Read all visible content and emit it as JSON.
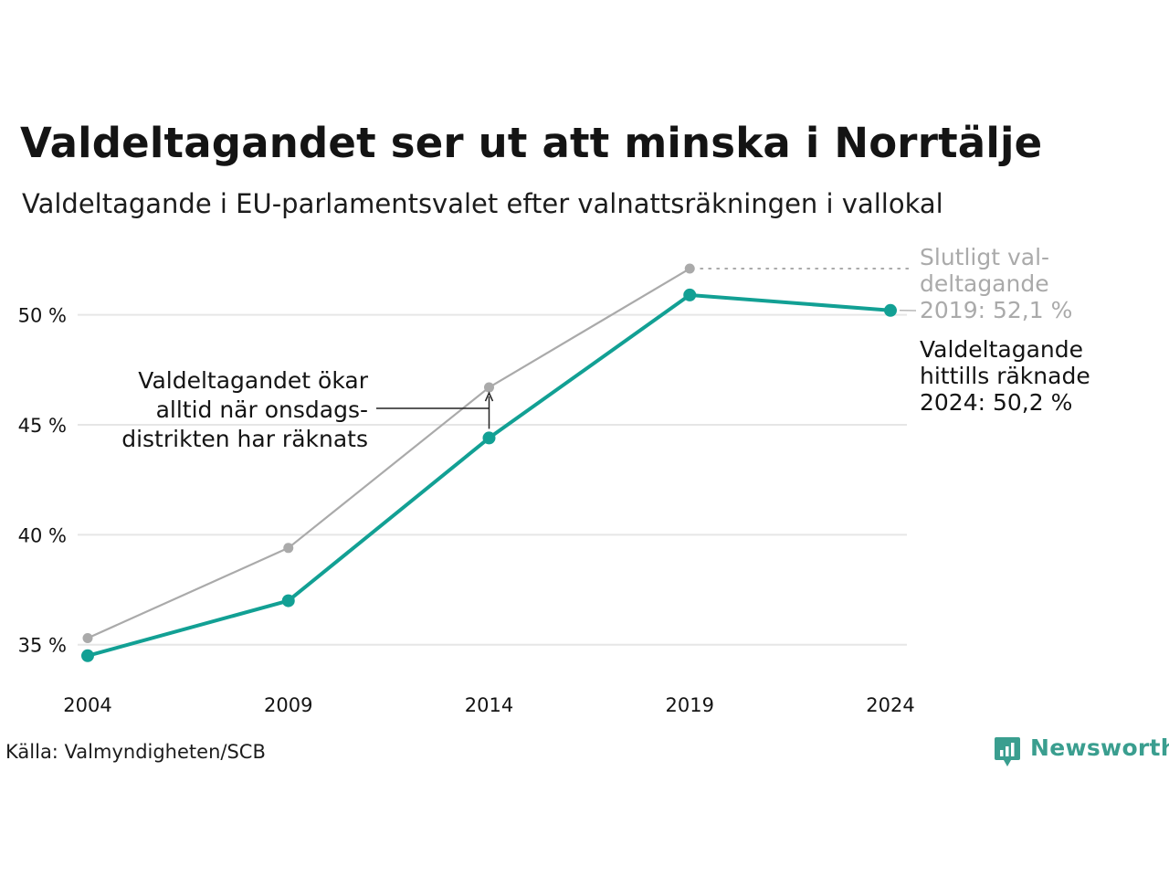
{
  "title": "Valdeltagandet ser ut att minska i Norrtälje",
  "subtitle": "Valdeltagande i EU-parlamentsvalet efter valnattsräkningen i vallokal",
  "source": "Källa: Valmyndigheten/SCB",
  "logo": {
    "text": "Newsworthy",
    "icon": "newsworthy-logo-icon"
  },
  "colors": {
    "counted": "#12a094",
    "final": "#aaaaaa",
    "grid": "#e6e6e6",
    "text": "#141414",
    "annotation": "#222222"
  },
  "chart_data": {
    "type": "line",
    "x": [
      "2004",
      "2009",
      "2014",
      "2019",
      "2024"
    ],
    "yticks": [
      "35 %",
      "40 %",
      "45 %",
      "50 %"
    ],
    "ytick_values": [
      35,
      40,
      45,
      50
    ],
    "ylim": [
      34.2,
      52.6
    ],
    "grid": "horizontal",
    "series": [
      {
        "key": "final",
        "values": [
          35.3,
          39.4,
          46.7,
          52.1,
          null
        ]
      },
      {
        "key": "counted",
        "values": [
          34.5,
          37.0,
          44.4,
          50.9,
          50.2
        ]
      }
    ],
    "annotations": {
      "final_label": [
        "Slutligt val-",
        "deltagande",
        "2019: 52,1 %"
      ],
      "counted_label": [
        "Valdeltagande",
        "hittills räknade",
        "2024: 50,2 %"
      ],
      "note": [
        "Valdeltagandet ökar",
        "alltid när onsdags-",
        "distrikten har räknats"
      ]
    }
  }
}
